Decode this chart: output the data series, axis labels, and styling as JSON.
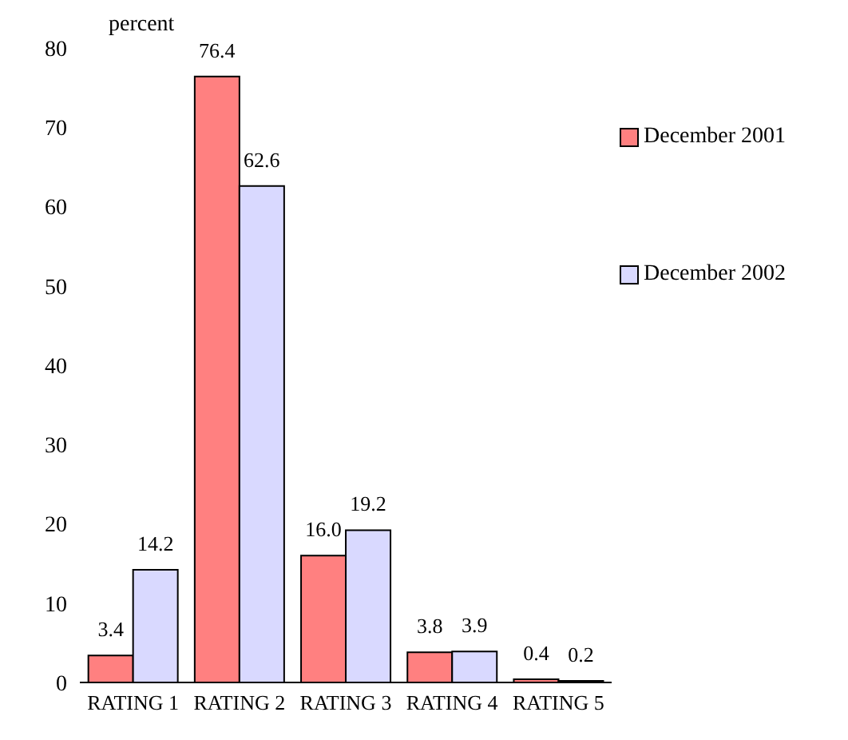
{
  "chart_data": {
    "type": "bar",
    "ylabel": "percent",
    "categories": [
      "RATING 1",
      "RATING 2",
      "RATING 3",
      "RATING 4",
      "RATING 5"
    ],
    "series": [
      {
        "name": "December 2001",
        "color": "#ff8080",
        "values": [
          3.4,
          76.4,
          16.0,
          3.8,
          0.4
        ],
        "value_labels": [
          "3.4",
          "76.4",
          "16.0",
          "3.8",
          "0.4"
        ]
      },
      {
        "name": "December 2002",
        "color": "#d9d9ff",
        "values": [
          14.2,
          62.6,
          19.2,
          3.9,
          0.2
        ],
        "value_labels": [
          "14.2",
          "62.6",
          "19.2",
          "3.9",
          "0.2"
        ]
      }
    ],
    "ylim": [
      0,
      80
    ],
    "yticks": [
      0,
      10,
      20,
      30,
      40,
      50,
      60,
      70,
      80
    ],
    "legend": "right"
  }
}
